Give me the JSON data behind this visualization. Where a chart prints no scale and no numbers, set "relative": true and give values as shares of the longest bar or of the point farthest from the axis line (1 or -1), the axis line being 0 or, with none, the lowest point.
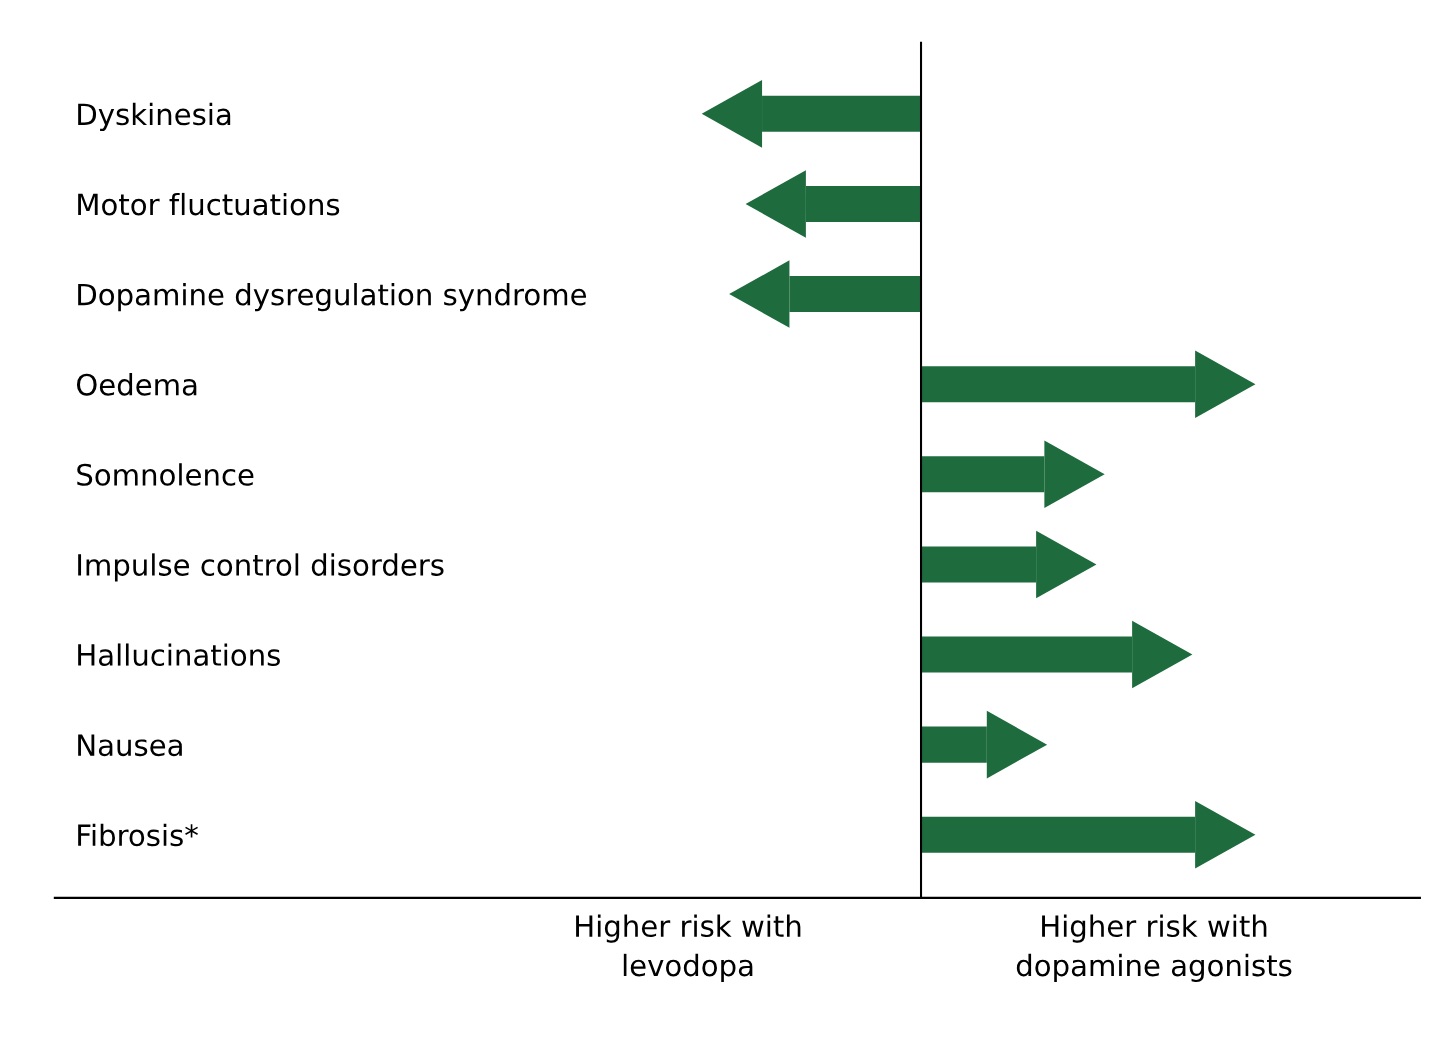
{
  "chart_data": {
    "type": "bar",
    "orientation": "horizontal",
    "relative": true,
    "categories": [
      "Dyskinesia",
      "Motor fluctuations",
      "Dopamine dysregulation syndrome",
      "Oedema",
      "Somnolence",
      "Impulse control disorders",
      "Hallucinations",
      "Nausea",
      "Fibrosis*"
    ],
    "values": [
      -0.58,
      -0.42,
      -0.48,
      1,
      0.45,
      0.42,
      0.77,
      0.24,
      1
    ],
    "color": "#1e6b3e",
    "annotations": [
      "Higher risk with\nlevodopa",
      "Higher risk with\ndopamine agonists"
    ]
  }
}
